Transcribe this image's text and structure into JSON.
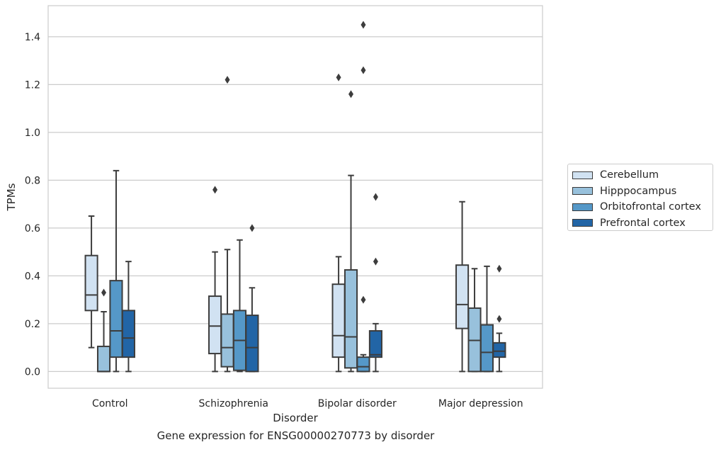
{
  "chart_data": {
    "type": "box",
    "title": "",
    "caption": "Gene expression for ENSG00000270773 by disorder",
    "xlabel": "Disorder",
    "ylabel": "TPMs",
    "ylim": [
      -0.07,
      1.53
    ],
    "yticks": [
      "0.0",
      "0.2",
      "0.4",
      "0.6",
      "0.8",
      "1.0",
      "1.2",
      "1.4"
    ],
    "ytick_values": [
      0.0,
      0.2,
      0.4,
      0.6,
      0.8,
      1.0,
      1.2,
      1.4
    ],
    "grid": "horizontal",
    "legend_position": "right",
    "categories": [
      "Control",
      "Schizophrenia",
      "Bipolar disorder",
      "Major depression"
    ],
    "series": [
      {
        "name": "Cerebellum",
        "color": "#d1e2f2",
        "boxes": [
          {
            "whislo": 0.1,
            "q1": 0.255,
            "med": 0.32,
            "q3": 0.485,
            "whishi": 0.65,
            "fliers": []
          },
          {
            "whislo": 0.0,
            "q1": 0.075,
            "med": 0.19,
            "q3": 0.315,
            "whishi": 0.5,
            "fliers": [
              0.76
            ]
          },
          {
            "whislo": 0.0,
            "q1": 0.06,
            "med": 0.15,
            "q3": 0.365,
            "whishi": 0.48,
            "fliers": [
              1.23
            ]
          },
          {
            "whislo": 0.0,
            "q1": 0.18,
            "med": 0.28,
            "q3": 0.445,
            "whishi": 0.71,
            "fliers": []
          }
        ]
      },
      {
        "name": "Hipppocampus",
        "color": "#98c1dc",
        "boxes": [
          {
            "whislo": 0.0,
            "q1": 0.0,
            "med": 0.0,
            "q3": 0.105,
            "whishi": 0.25,
            "fliers": [
              0.33
            ]
          },
          {
            "whislo": 0.0,
            "q1": 0.02,
            "med": 0.1,
            "q3": 0.24,
            "whishi": 0.51,
            "fliers": [
              1.22
            ]
          },
          {
            "whislo": 0.0,
            "q1": 0.015,
            "med": 0.145,
            "q3": 0.425,
            "whishi": 0.82,
            "fliers": [
              1.16
            ]
          },
          {
            "whislo": 0.0,
            "q1": 0.0,
            "med": 0.13,
            "q3": 0.265,
            "whishi": 0.43,
            "fliers": []
          }
        ]
      },
      {
        "name": "Orbitofrontal cortex",
        "color": "#5598c8",
        "boxes": [
          {
            "whislo": 0.0,
            "q1": 0.06,
            "med": 0.17,
            "q3": 0.38,
            "whishi": 0.84,
            "fliers": []
          },
          {
            "whislo": 0.0,
            "q1": 0.005,
            "med": 0.13,
            "q3": 0.255,
            "whishi": 0.55,
            "fliers": []
          },
          {
            "whislo": 0.0,
            "q1": 0.0,
            "med": 0.02,
            "q3": 0.06,
            "whishi": 0.07,
            "fliers": [
              1.26,
              1.45,
              0.3
            ]
          },
          {
            "whislo": 0.0,
            "q1": 0.0,
            "med": 0.08,
            "q3": 0.195,
            "whishi": 0.44,
            "fliers": []
          }
        ]
      },
      {
        "name": "Prefrontal cortex",
        "color": "#2265a6",
        "boxes": [
          {
            "whislo": 0.0,
            "q1": 0.06,
            "med": 0.14,
            "q3": 0.255,
            "whishi": 0.46,
            "fliers": []
          },
          {
            "whislo": 0.0,
            "q1": 0.0,
            "med": 0.1,
            "q3": 0.235,
            "whishi": 0.35,
            "fliers": [
              0.6
            ]
          },
          {
            "whislo": 0.0,
            "q1": 0.06,
            "med": 0.07,
            "q3": 0.17,
            "whishi": 0.2,
            "fliers": [
              0.73,
              0.46
            ]
          },
          {
            "whislo": 0.0,
            "q1": 0.06,
            "med": 0.085,
            "q3": 0.12,
            "whishi": 0.16,
            "fliers": [
              0.43,
              0.22
            ]
          }
        ]
      }
    ]
  }
}
